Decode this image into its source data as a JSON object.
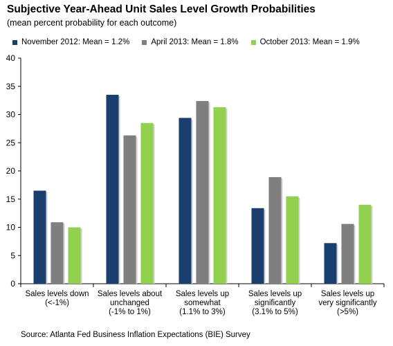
{
  "chart_data": {
    "type": "bar",
    "title": "Subjective Year-Ahead Unit Sales Level Growth Probabilities",
    "subtitle": "(mean percent probability for each outcome)",
    "categories": [
      [
        "Sales levels down",
        "(<-1%)"
      ],
      [
        "Sales levels about",
        "unchanged",
        "(-1% to 1%)"
      ],
      [
        "Sales levels up",
        "somewhat",
        "(1.1% to 3%)"
      ],
      [
        "Sales levels up",
        "significantly",
        "(3.1% to 5%)"
      ],
      [
        "Sales levels up",
        "very significantly",
        "(>5%)"
      ]
    ],
    "series": [
      {
        "name": "November 2012: Mean = 1.2%",
        "color": "#1a3f6e",
        "values": [
          16.5,
          33.5,
          29.4,
          13.4,
          7.2
        ]
      },
      {
        "name": "April 2013: Mean = 1.8%",
        "color": "#7f7f7f",
        "values": [
          10.9,
          26.3,
          32.4,
          18.9,
          10.6
        ]
      },
      {
        "name": "October 2013: Mean = 1.9%",
        "color": "#92d050",
        "values": [
          10.0,
          28.5,
          31.3,
          15.5,
          14.0
        ]
      }
    ],
    "ylim": [
      0,
      40
    ],
    "yticks": [
      0,
      5,
      10,
      15,
      20,
      25,
      30,
      35,
      40
    ],
    "grid": false,
    "legend": "top",
    "source": "Source: Atlanta Fed Business Inflation Expectations (BIE) Survey"
  }
}
